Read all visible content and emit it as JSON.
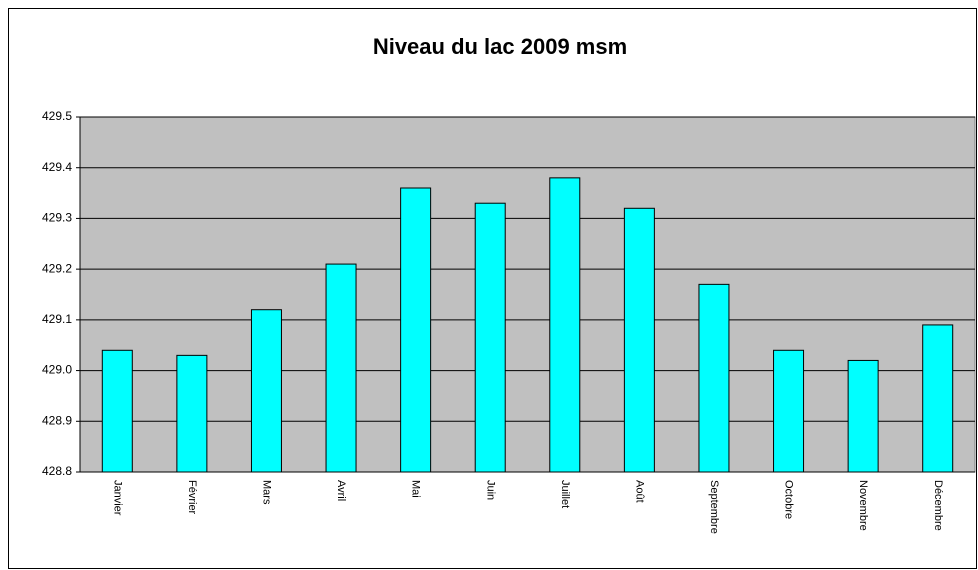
{
  "chart_data": {
    "type": "bar",
    "title": "Niveau du lac 2009 msm",
    "categories": [
      "Janvier",
      "Février",
      "Mars",
      "Avril",
      "Mai",
      "Juin",
      "Juillet",
      "Août",
      "Septembre",
      "Octobre",
      "Novembre",
      "Décembre"
    ],
    "values": [
      429.04,
      429.03,
      429.12,
      429.21,
      429.36,
      429.33,
      429.38,
      429.32,
      429.17,
      429.04,
      429.02,
      429.09
    ],
    "color": "#00ffff",
    "ylim": [
      428.8,
      429.5
    ],
    "yticks": [
      428.8,
      428.9,
      {
        "value": 429,
        "label": "429.0"
      },
      429.1,
      429.2,
      429.3,
      429.4,
      429.5
    ],
    "grid": true
  }
}
